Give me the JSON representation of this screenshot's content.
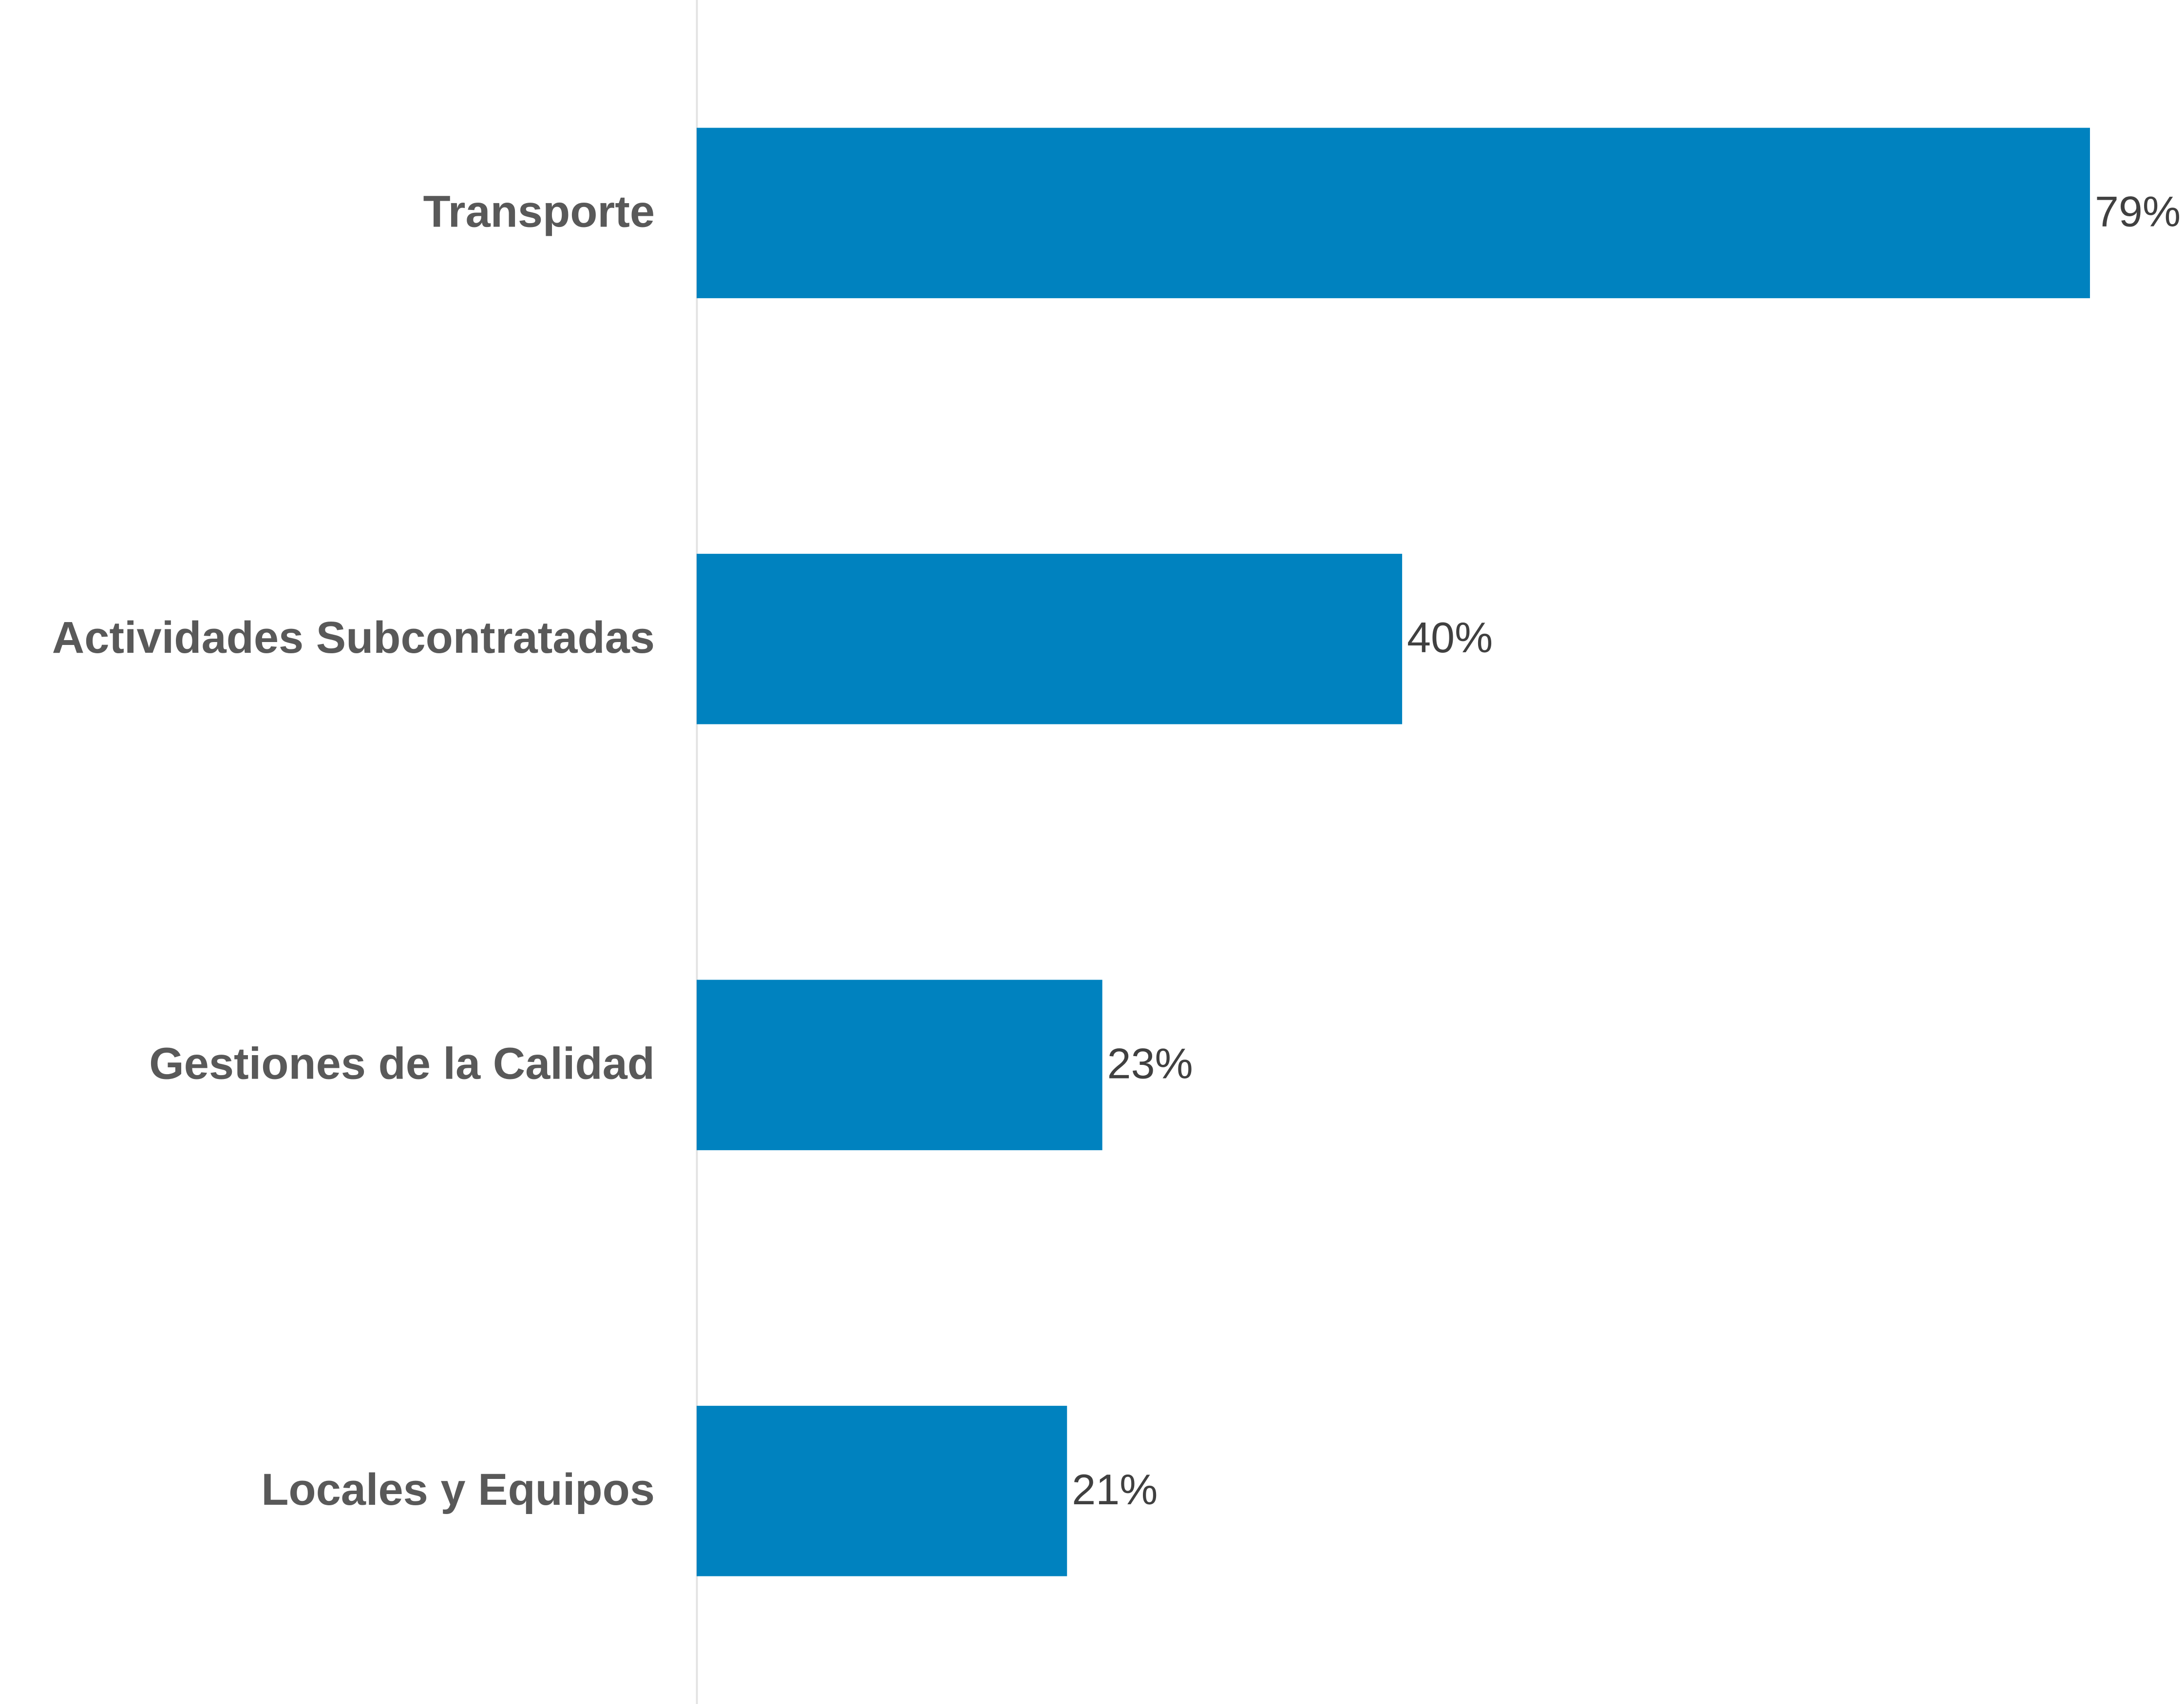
{
  "chart_data": {
    "type": "bar",
    "orientation": "horizontal",
    "categories": [
      "Transporte",
      "Actividades Subcontratadas",
      "Gestiones de la Calidad",
      "Locales y Equipos"
    ],
    "values": [
      79,
      40,
      23,
      21
    ],
    "value_labels": [
      "79%",
      "40%",
      "23%",
      "21%"
    ],
    "color": "#0082bf",
    "xlim": [
      0,
      84
    ]
  }
}
